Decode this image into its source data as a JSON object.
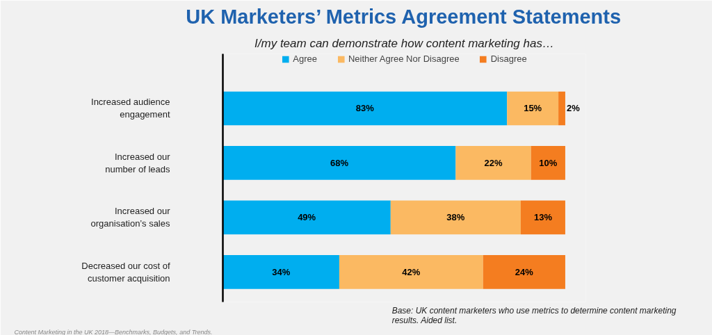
{
  "chart_data": {
    "type": "bar",
    "orientation": "horizontal",
    "stacked": true,
    "title": "UK Marketers’ Metrics Agreement Statements",
    "subtitle": "I/my team can demonstrate how content marketing has…",
    "categories": [
      "Increased audience\nengagement",
      "Increased our\nnumber of leads",
      "Increased our\norganisation’s sales",
      "Decreased our cost of\ncustomer acquisition"
    ],
    "series": [
      {
        "name": "Agree",
        "color": "#00aeef",
        "values": [
          83,
          68,
          49,
          34
        ],
        "value_labels": [
          "83%",
          "68%",
          "49%",
          "34%"
        ]
      },
      {
        "name": "Neither Agree Nor Disagree",
        "color": "#fbb962",
        "values": [
          15,
          22,
          38,
          42
        ],
        "value_labels": [
          "15%",
          "22%",
          "38%",
          "42%"
        ]
      },
      {
        "name": "Disagree",
        "color": "#f47d20",
        "values": [
          2,
          10,
          13,
          24
        ],
        "value_labels": [
          "2%",
          "10%",
          "13%",
          "24%"
        ]
      }
    ],
    "legend": "top",
    "grid": false,
    "tick_labels": "y",
    "annotations": [
      "Base: UK content marketers who use metrics to determine content marketing\nresults. Aided list.",
      "Content Marketing in the UK 2018—Benchmarks, Budgets, and Trends."
    ]
  }
}
